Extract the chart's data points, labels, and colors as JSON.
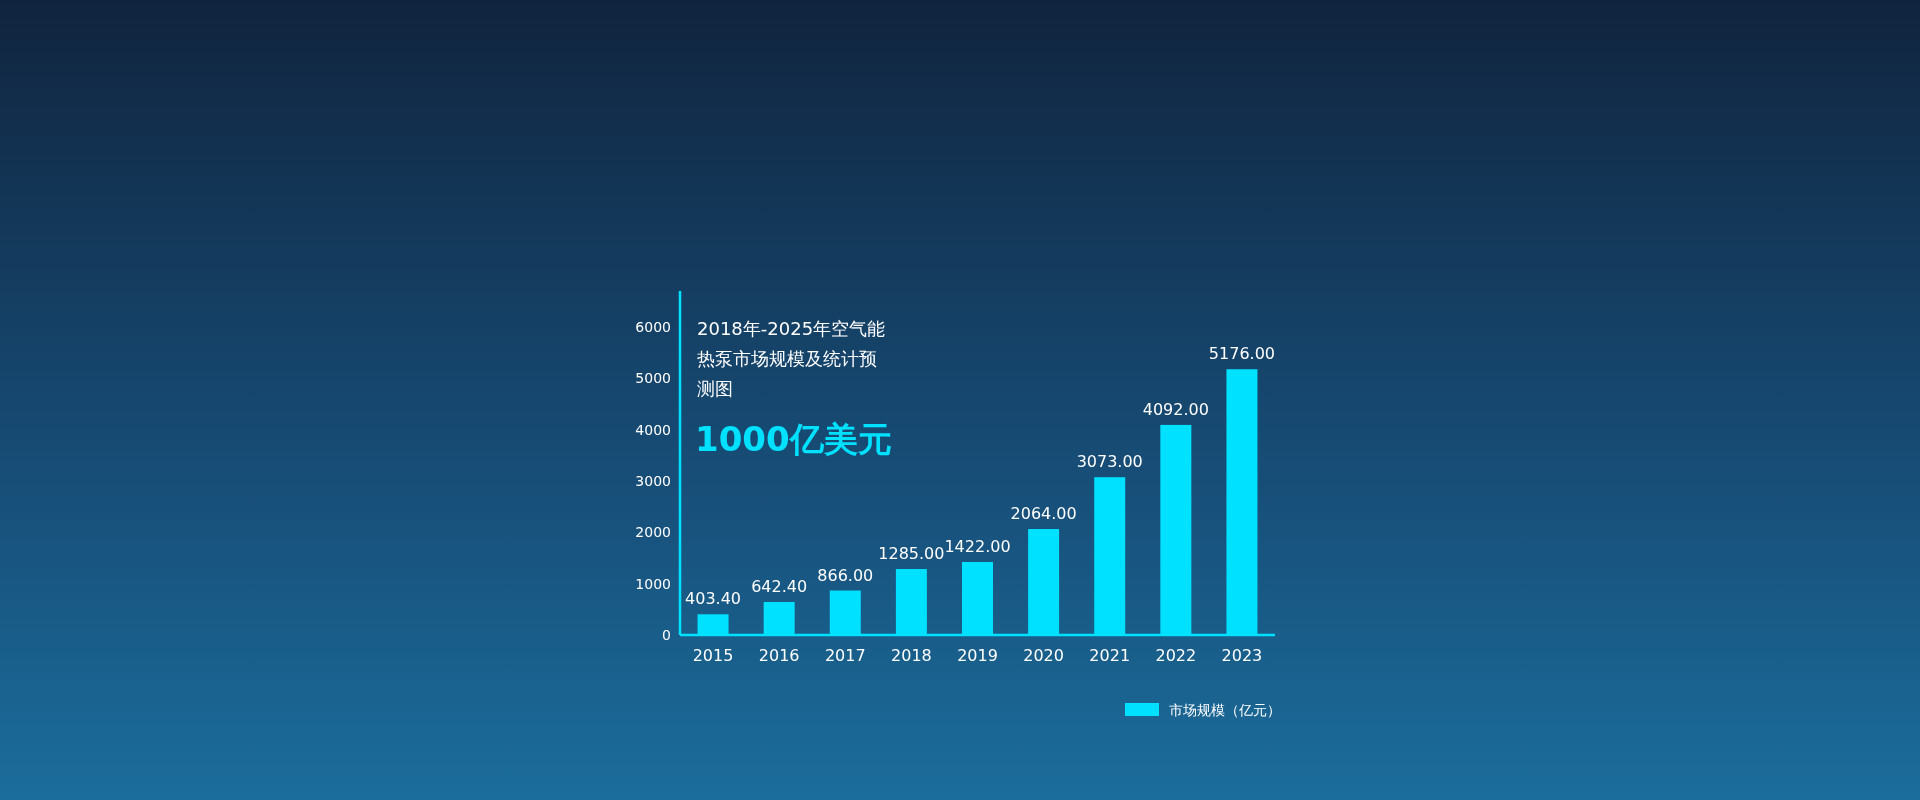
{
  "chart_data": {
    "type": "bar",
    "title": "2018年-2025年空气能热泵市场规模及统计预测图",
    "subtitle": "1000亿美元",
    "categories": [
      "2015",
      "2016",
      "2017",
      "2018",
      "2019",
      "2020",
      "2021",
      "2022",
      "2023"
    ],
    "series": [
      {
        "name": "市场规模（亿元）",
        "color": "#00e1ff",
        "values": [
          403.4,
          642.4,
          866,
          1285,
          1422,
          2064,
          3073,
          4092,
          5176
        ],
        "value_labels": [
          "403.40",
          "642.40",
          "866.00",
          "1285.00",
          "1422.00",
          "2064.00",
          "3073.00",
          "4092.00",
          "5176.00"
        ]
      }
    ],
    "ylim": [
      0,
      6700
    ],
    "yticks": [
      0,
      1000,
      2000,
      3000,
      4000,
      5000,
      6000
    ],
    "legend": "bottom right"
  }
}
